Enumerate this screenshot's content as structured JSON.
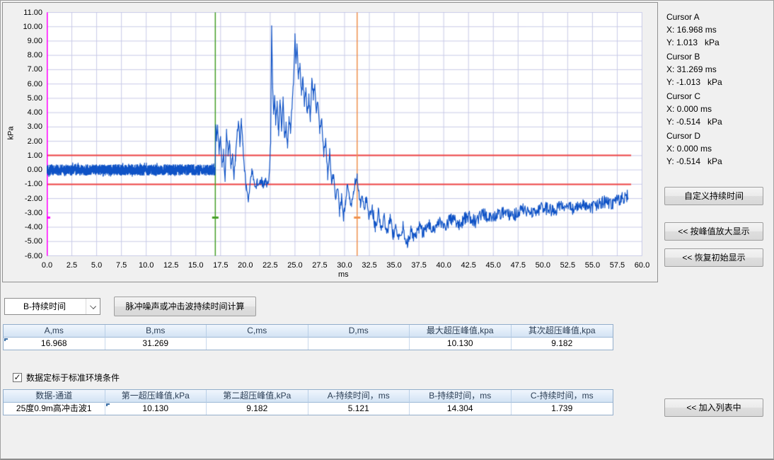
{
  "chart_data": {
    "type": "line",
    "title": "",
    "xlabel": "ms",
    "ylabel": "kPa",
    "xlim": [
      0,
      60
    ],
    "ylim": [
      -6,
      11
    ],
    "x_tick_step": 2.5,
    "y_tick_step": 1.0,
    "x_ticks": [
      "0.0",
      "2.5",
      "5.0",
      "7.5",
      "10.0",
      "12.5",
      "15.0",
      "17.5",
      "20.0",
      "22.5",
      "25.0",
      "27.5",
      "30.0",
      "32.5",
      "35.0",
      "37.5",
      "40.0",
      "42.5",
      "45.0",
      "47.5",
      "50.0",
      "52.5",
      "55.0",
      "57.5",
      "60.0"
    ],
    "y_ticks": [
      "11.00",
      "10.00",
      "9.00",
      "8.00",
      "7.00",
      "6.00",
      "5.00",
      "4.00",
      "3.00",
      "2.00",
      "1.00",
      "0.00",
      "-1.00",
      "-2.00",
      "-3.00",
      "-4.00",
      "-5.00",
      "-6.00"
    ],
    "grid": true,
    "grid_color": "#c9cbe8",
    "series_color": "#0e52c6",
    "threshold_lines": {
      "values": [
        1.013,
        -1.013
      ],
      "color": "#f04343",
      "x_from": 0,
      "x_to": 58.9
    },
    "cursor_lines": [
      {
        "name": "origin",
        "x": 0,
        "color": "#ff00ff"
      },
      {
        "name": "A",
        "x": 16.968,
        "color": "#46a028"
      },
      {
        "name": "B",
        "x": 31.269,
        "color": "#f0914e"
      }
    ],
    "handle_y": -3.33,
    "noise_seed": 42,
    "baseline": {
      "from": 0,
      "to": 16.93,
      "amplitude": 0.37
    },
    "noise_segments": [
      {
        "from": 16.93,
        "to": 22.3,
        "amp": 0.3
      },
      {
        "from": 22.3,
        "to": 28.0,
        "amp": 0.32
      },
      {
        "from": 28.0,
        "to": 32.0,
        "amp": 0.3
      },
      {
        "from": 32.0,
        "to": 60.0,
        "amp": 0.45
      }
    ],
    "waveform_keypoints": [
      [
        16.95,
        0.05
      ],
      [
        17.02,
        3.3
      ],
      [
        17.1,
        2.1
      ],
      [
        17.2,
        2.9
      ],
      [
        17.35,
        1.3
      ],
      [
        17.5,
        2.2
      ],
      [
        17.65,
        0.4
      ],
      [
        17.8,
        1.2
      ],
      [
        17.95,
        -0.8
      ],
      [
        18.1,
        2.6
      ],
      [
        18.25,
        1.2
      ],
      [
        18.4,
        2.0
      ],
      [
        18.55,
        0.2
      ],
      [
        18.7,
        1.1
      ],
      [
        18.85,
        -0.4
      ],
      [
        19.0,
        0.9
      ],
      [
        19.15,
        2.4
      ],
      [
        19.3,
        3.3
      ],
      [
        19.45,
        1.9
      ],
      [
        19.6,
        3.4
      ],
      [
        19.75,
        1.6
      ],
      [
        19.9,
        0.2
      ],
      [
        20.1,
        -1.2
      ],
      [
        20.3,
        -2.0
      ],
      [
        20.5,
        -1.0
      ],
      [
        20.65,
        0.1
      ],
      [
        20.8,
        -0.6
      ],
      [
        21.0,
        -1.4
      ],
      [
        21.2,
        -0.8
      ],
      [
        21.4,
        -1.2
      ],
      [
        21.6,
        -0.7
      ],
      [
        21.8,
        -1.1
      ],
      [
        22.0,
        -0.8
      ],
      [
        22.2,
        -1.0
      ],
      [
        22.4,
        -0.4
      ],
      [
        22.55,
        2.0
      ],
      [
        22.65,
        10.13
      ],
      [
        22.75,
        5.8
      ],
      [
        22.85,
        3.9
      ],
      [
        22.95,
        5.2
      ],
      [
        23.05,
        3.2
      ],
      [
        23.2,
        4.5
      ],
      [
        23.35,
        2.6
      ],
      [
        23.5,
        4.7
      ],
      [
        23.65,
        2.9
      ],
      [
        23.8,
        4.9
      ],
      [
        23.95,
        2.1
      ],
      [
        24.1,
        3.1
      ],
      [
        24.25,
        1.4
      ],
      [
        24.4,
        3.7
      ],
      [
        24.55,
        2.6
      ],
      [
        24.7,
        4.4
      ],
      [
        24.85,
        6.2
      ],
      [
        25.0,
        9.2
      ],
      [
        25.1,
        7.6
      ],
      [
        25.2,
        8.5
      ],
      [
        25.35,
        6.6
      ],
      [
        25.5,
        7.4
      ],
      [
        25.65,
        5.4
      ],
      [
        25.8,
        6.4
      ],
      [
        25.95,
        4.6
      ],
      [
        26.1,
        5.7
      ],
      [
        26.25,
        3.7
      ],
      [
        26.4,
        5.0
      ],
      [
        26.55,
        3.5
      ],
      [
        26.7,
        6.5
      ],
      [
        26.85,
        5.0
      ],
      [
        27.0,
        6.0
      ],
      [
        27.15,
        3.9
      ],
      [
        27.3,
        4.7
      ],
      [
        27.5,
        2.7
      ],
      [
        27.7,
        3.4
      ],
      [
        27.9,
        1.2
      ],
      [
        28.1,
        2.1
      ],
      [
        28.3,
        -0.5
      ],
      [
        28.5,
        1.4
      ],
      [
        28.7,
        -1.0
      ],
      [
        28.9,
        -0.2
      ],
      [
        29.1,
        -2.1
      ],
      [
        29.3,
        -1.1
      ],
      [
        29.5,
        -3.0
      ],
      [
        29.7,
        -1.9
      ],
      [
        29.9,
        -3.3
      ],
      [
        30.1,
        -2.2
      ],
      [
        30.3,
        -1.0
      ],
      [
        30.5,
        -1.8
      ],
      [
        30.7,
        -2.6
      ],
      [
        30.9,
        -1.5
      ],
      [
        31.1,
        -0.7
      ],
      [
        31.27,
        -0.5
      ],
      [
        31.45,
        -1.6
      ],
      [
        31.6,
        -2.4
      ],
      [
        31.8,
        -1.7
      ],
      [
        32.0,
        -2.9
      ],
      [
        32.2,
        -1.9
      ],
      [
        32.5,
        -3.4
      ],
      [
        32.8,
        -2.6
      ],
      [
        33.1,
        -4.0
      ],
      [
        33.4,
        -3.0
      ],
      [
        33.7,
        -4.2
      ],
      [
        34.0,
        -3.2
      ],
      [
        34.3,
        -4.4
      ],
      [
        34.6,
        -3.5
      ],
      [
        34.9,
        -4.6
      ],
      [
        35.2,
        -3.8
      ],
      [
        35.5,
        -4.8
      ],
      [
        35.9,
        -4.0
      ],
      [
        36.3,
        -5.1
      ],
      [
        36.7,
        -4.2
      ],
      [
        37.1,
        -4.8
      ],
      [
        37.5,
        -4.0
      ],
      [
        38.0,
        -4.5
      ],
      [
        38.5,
        -3.8
      ],
      [
        39.0,
        -4.2
      ],
      [
        39.5,
        -3.6
      ],
      [
        40.0,
        -4.0
      ],
      [
        40.8,
        -3.4
      ],
      [
        41.6,
        -3.8
      ],
      [
        42.4,
        -3.2
      ],
      [
        43.2,
        -3.6
      ],
      [
        44.0,
        -3.1
      ],
      [
        45.0,
        -3.4
      ],
      [
        46.0,
        -2.9
      ],
      [
        47.0,
        -3.2
      ],
      [
        48.0,
        -2.8
      ],
      [
        49.0,
        -3.0
      ],
      [
        50.0,
        -2.6
      ],
      [
        51.0,
        -2.9
      ],
      [
        52.0,
        -2.5
      ],
      [
        53.0,
        -2.7
      ],
      [
        54.0,
        -2.4
      ],
      [
        55.0,
        -2.6
      ],
      [
        56.0,
        -2.2
      ],
      [
        57.0,
        -2.3
      ],
      [
        58.0,
        -2.0
      ],
      [
        58.6,
        -1.8
      ]
    ]
  },
  "cursor_panel": {
    "groups": [
      {
        "title": "Cursor A",
        "x": "X: 16.968 ms",
        "y": "Y: 1.013   kPa"
      },
      {
        "title": "Cursor B",
        "x": "X: 31.269 ms",
        "y": "Y: -1.013   kPa"
      },
      {
        "title": "Cursor C",
        "x": "X: 0.000 ms",
        "y": "Y: -0.514   kPa"
      },
      {
        "title": "Cursor D",
        "x": "X: 0.000 ms",
        "y": "Y: -0.514   kPa"
      }
    ]
  },
  "buttons": {
    "custom_duration": "自定义持续时间",
    "zoom_to_peak": "<< 按峰值放大显示",
    "restore_initial": "<<  恢复初始显示",
    "add_to_list": "<< 加入列表中",
    "calc_duration": "脉冲噪声或冲击波持续时间计算"
  },
  "dropdown": {
    "value": "B-持续时间"
  },
  "checkbox": {
    "label": "数据定标于标准环境条件",
    "checked": true,
    "mark": "✓"
  },
  "tables": {
    "results": {
      "headers": [
        "A,ms",
        "B,ms",
        "C,ms",
        "D,ms",
        "最大超压峰值,kpa",
        "其次超压峰值,kpa"
      ],
      "row": [
        "16.968",
        "31.269",
        "",
        "",
        "10.130",
        "9.182"
      ]
    },
    "channel": {
      "headers": [
        "数据-通道",
        "第一超压峰值,kPa",
        "第二超压峰值,kPa",
        "A-持续时间，ms",
        "B-持续时间，ms",
        "C-持续时间，ms"
      ],
      "row": [
        "25度0.9m高冲击波1",
        "10.130",
        "9.182",
        "5.121",
        "14.304",
        "1.739"
      ]
    }
  }
}
